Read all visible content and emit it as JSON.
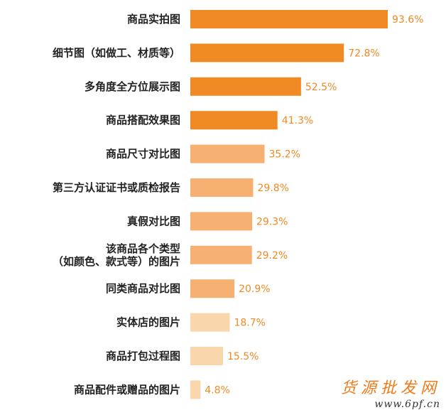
{
  "chart_data": {
    "type": "bar",
    "orientation": "horizontal",
    "title": "",
    "xlabel": "",
    "ylabel": "",
    "xlim": [
      0,
      100
    ],
    "grid": false,
    "legend": "none",
    "value_suffix": "%",
    "categories": [
      [
        "商品实拍图"
      ],
      [
        "细节图（如做工、材质等）"
      ],
      [
        "多角度全方位展示图"
      ],
      [
        "商品搭配效果图"
      ],
      [
        "商品尺寸对比图"
      ],
      [
        "第三方认证证书或质检报告"
      ],
      [
        "真假对比图"
      ],
      [
        "该商品各个类型",
        "（如颜色、款式等）的图片"
      ],
      [
        "同类商品对比图"
      ],
      [
        "实体店的图片"
      ],
      [
        "商品打包过程图"
      ],
      [
        "商品配件或赠品的图片"
      ]
    ],
    "values": [
      93.6,
      72.8,
      52.5,
      41.3,
      35.2,
      29.8,
      29.3,
      29.2,
      20.9,
      18.7,
      15.5,
      4.8
    ],
    "value_labels": [
      "93.6%",
      "72.8%",
      "52.5%",
      "41.3%",
      "35.2%",
      "29.8%",
      "29.3%",
      "29.2%",
      "20.9%",
      "18.7%",
      "15.5%",
      "4.8%"
    ],
    "bar_colors": [
      "#f08a24",
      "#f08a24",
      "#f08a24",
      "#f08a24",
      "#f5b072",
      "#f5b072",
      "#f5b072",
      "#f5b072",
      "#f5b072",
      "#f9d6ac",
      "#f9d6ac",
      "#f9d6ac"
    ],
    "label_color": "#f08a24"
  },
  "watermark": {
    "title": "货源批发网",
    "url": "www.6pf.cn"
  }
}
